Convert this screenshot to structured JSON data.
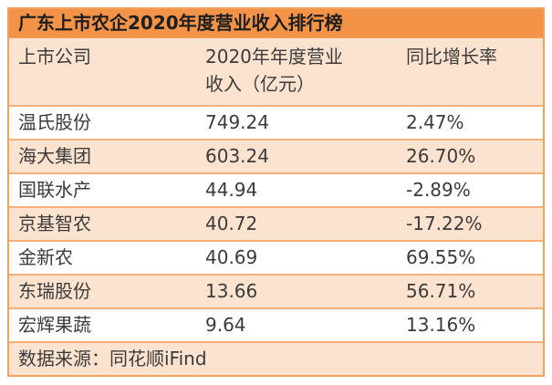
{
  "title": "广东上市农企2020年度营业收入排行榜",
  "header": {
    "col1": "上市公司",
    "col2_line1": "2020年年度营业",
    "col2_line2": "收入（亿元）",
    "col3": "同比增长率"
  },
  "footer": {
    "source": "数据来源：同花顺iFind"
  },
  "colors": {
    "title_bar_bg": "#F29347",
    "band_bg": "#FCE3CF",
    "row_border": "#F3B078",
    "outer_border": "#F0A261",
    "text": "#3B3B3B",
    "title_text": "#1E1E1E"
  },
  "chart_data": {
    "type": "table",
    "title": "广东上市农企2020年度营业收入排行榜",
    "columns": [
      "上市公司",
      "2020年年度营业收入（亿元）",
      "同比增长率"
    ],
    "rows": [
      {
        "company": "温氏股份",
        "revenue": "749.24",
        "growth": "2.47%"
      },
      {
        "company": "海大集团",
        "revenue": "603.24",
        "growth": "26.70%"
      },
      {
        "company": "国联水产",
        "revenue": "44.94",
        "growth": "-2.89%"
      },
      {
        "company": "京基智农",
        "revenue": "40.72",
        "growth": "-17.22%"
      },
      {
        "company": "金新农",
        "revenue": "40.69",
        "growth": "69.55%"
      },
      {
        "company": "东瑞股份",
        "revenue": "13.66",
        "growth": "56.71%"
      },
      {
        "company": "宏辉果蔬",
        "revenue": "9.64",
        "growth": "13.16%"
      }
    ],
    "source": "数据来源：同花顺iFind",
    "layout": {
      "banded_rows": true,
      "grid": "horizontal-only",
      "legend": "none"
    }
  }
}
